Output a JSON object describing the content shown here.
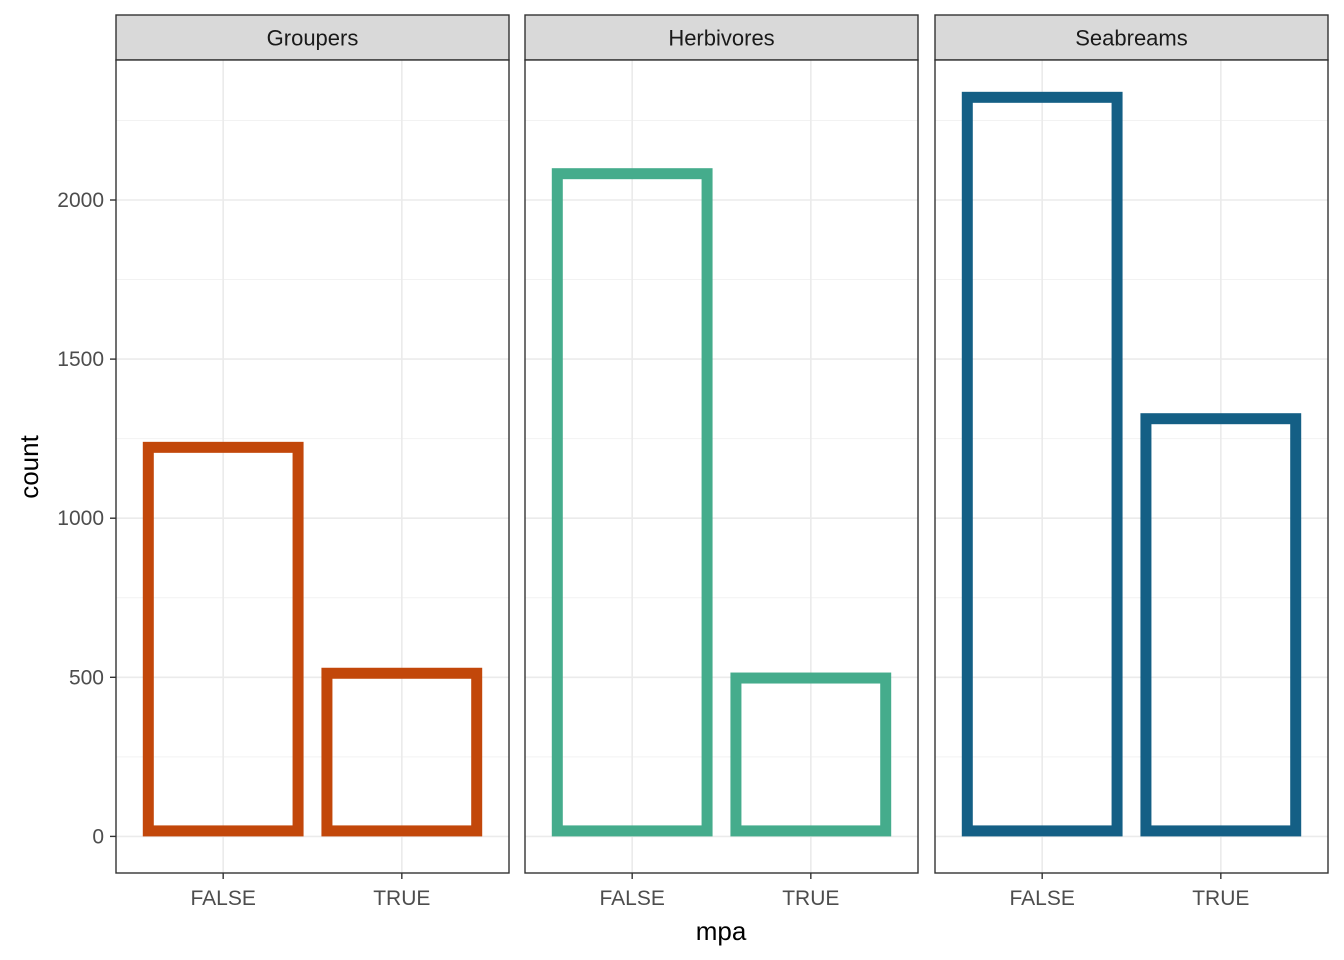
{
  "chart_data": {
    "type": "bar",
    "style": "faceted, outlined bars",
    "xlabel": "mpa",
    "ylabel": "count",
    "categories": [
      "FALSE",
      "TRUE"
    ],
    "ylim": [
      -115,
      2440
    ],
    "yticks": [
      0,
      500,
      1000,
      1500,
      2000
    ],
    "ytick_labels": [
      "0",
      "500",
      "1000",
      "1500",
      "2000"
    ],
    "grid": true,
    "legend": "none",
    "facets": [
      {
        "label": "Groupers",
        "color": "#C2470A",
        "values": [
          1240,
          530
        ]
      },
      {
        "label": "Herbivores",
        "color": "#45AC8C",
        "values": [
          2100,
          515
        ]
      },
      {
        "label": "Seabreams",
        "color": "#145F85",
        "values": [
          2340,
          1330
        ]
      }
    ]
  }
}
